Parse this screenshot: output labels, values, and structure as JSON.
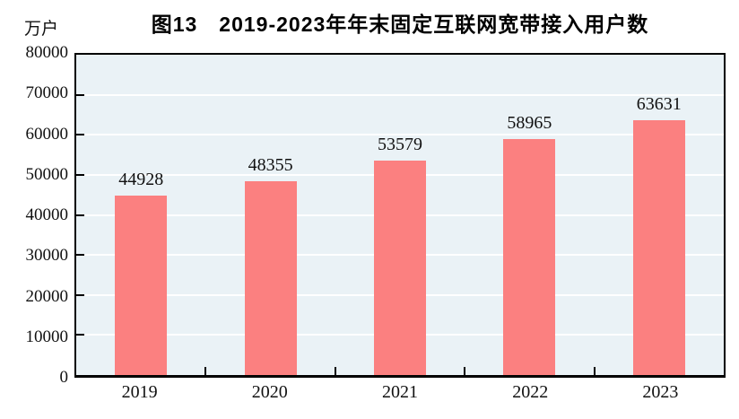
{
  "chart_data": {
    "type": "bar",
    "title": "图13　2019-2023年年末固定互联网宽带接入用户数",
    "unit_label": "万户",
    "categories": [
      "2019",
      "2020",
      "2021",
      "2022",
      "2023"
    ],
    "values": [
      44928,
      48355,
      53579,
      58965,
      63631
    ],
    "xlabel": "",
    "ylabel": "万户",
    "ylim": [
      0,
      80000
    ],
    "ytick_step": 10000,
    "yticks": [
      0,
      10000,
      20000,
      30000,
      40000,
      50000,
      60000,
      70000,
      80000
    ],
    "grid": "horizontal",
    "legend": "none",
    "colors": {
      "bar_fill": "#FB8080",
      "plot_background": "#EAF2F6",
      "gridline": "#FFFFFF",
      "axis": "#000000",
      "text": "#111111",
      "title_text": "#000000"
    }
  }
}
